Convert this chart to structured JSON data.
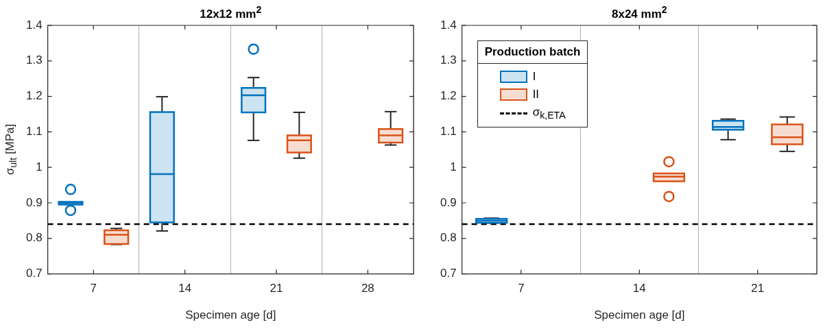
{
  "chart_data": [
    {
      "type": "box",
      "title": "12x12 mm$^{2}$",
      "xlabel": "Specimen age [d]",
      "ylabel": "σ$_{ult}$ [MPa]",
      "categories": [
        "7",
        "14",
        "21",
        "28"
      ],
      "series": [
        {
          "color": "#0072bd",
          "boxes": [
            {
              "low": 0.895,
              "q1": 0.895,
              "median": 0.9,
              "q3": 0.903,
              "high": 0.903,
              "outliers": [
                0.938,
                0.879
              ]
            },
            {
              "low": 0.821,
              "q1": 0.845,
              "median": 0.981,
              "q3": 1.156,
              "high": 1.199
            },
            {
              "low": 1.076,
              "q1": 1.155,
              "median": 1.203,
              "q3": 1.224,
              "high": 1.253,
              "outliers": [
                1.333
              ]
            },
            null
          ]
        },
        {
          "color": "#d95319",
          "boxes": [
            {
              "low": 0.783,
              "q1": 0.784,
              "median": 0.81,
              "q3": 0.823,
              "high": 0.828
            },
            null,
            {
              "low": 1.026,
              "q1": 1.042,
              "median": 1.076,
              "q3": 1.09,
              "high": 1.155
            },
            {
              "low": 1.063,
              "q1": 1.07,
              "median": 1.09,
              "q3": 1.108,
              "high": 1.157
            }
          ]
        }
      ],
      "ylim": [
        0.7,
        1.4
      ],
      "yticks": [
        0.7,
        0.8,
        0.9,
        1,
        1.1,
        1.2,
        1.3,
        1.4
      ],
      "ref_lines": [
        {
          "axis": "y",
          "value": 0.84,
          "color": "#000000",
          "line_style": "dashed"
        }
      ],
      "grid": "x"
    },
    {
      "type": "box",
      "title": "8x24 mm$^{2}$",
      "xlabel": "Specimen age [d]",
      "categories": [
        "7",
        "14",
        "21"
      ],
      "series": [
        {
          "name": "I",
          "color": "#0072bd",
          "boxes": [
            {
              "low": 0.843,
              "q1": 0.844,
              "median": 0.85,
              "q3": 0.855,
              "high": 0.857
            },
            null,
            {
              "low": 1.078,
              "q1": 1.106,
              "median": 1.114,
              "q3": 1.131,
              "high": 1.136
            }
          ]
        },
        {
          "name": "II",
          "color": "#d95319",
          "boxes": [
            null,
            {
              "low": 0.961,
              "q1": 0.961,
              "median": 0.974,
              "q3": 0.983,
              "high": 0.983,
              "outliers": [
                1.016,
                0.918
              ]
            },
            {
              "low": 1.045,
              "q1": 1.065,
              "median": 1.085,
              "q3": 1.121,
              "high": 1.142
            }
          ]
        }
      ],
      "ylim": [
        0.7,
        1.4
      ],
      "yticks": [
        0.7,
        0.8,
        0.9,
        1,
        1.1,
        1.2,
        1.3,
        1.4
      ],
      "ref_lines": [
        {
          "axis": "y",
          "value": 0.84,
          "label": "σ$_{k,ETA}$",
          "color": "#000000",
          "line_style": "dashed"
        }
      ],
      "grid": "x",
      "legend": "top left",
      "legend_title": "Production batch"
    }
  ]
}
